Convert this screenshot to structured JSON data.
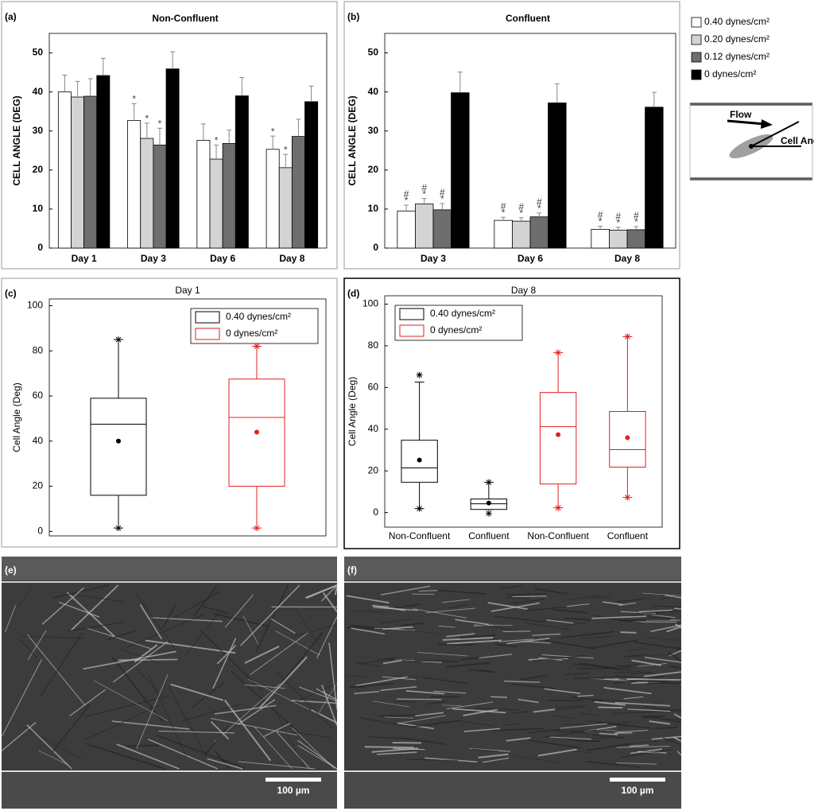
{
  "chart_data": [
    {
      "panel": "(a)",
      "type": "bar",
      "title": "Non-Confluent",
      "y_label": "CELL ANGLE (DEG)",
      "legend": true,
      "categories": [
        "Day 1",
        "Day 3",
        "Day 6",
        "Day 8"
      ],
      "ylim": [
        0,
        55
      ],
      "yticks": [
        0,
        10,
        20,
        30,
        40,
        50
      ],
      "series": [
        {
          "name": "0.40 dynes/cm²",
          "color": "#ffffff",
          "values": [
            40,
            32.7,
            27.6,
            25.3
          ],
          "errors": [
            4.3,
            4.3,
            4.2,
            3.4
          ],
          "annotations": [
            null,
            [
              "*"
            ],
            null,
            [
              "*"
            ]
          ]
        },
        {
          "name": "0.20 dynes/cm²",
          "color": "#d3d3d3",
          "values": [
            38.7,
            28.1,
            22.8,
            20.6
          ],
          "errors": [
            4,
            3.9,
            3.6,
            3.4
          ],
          "annotations": [
            null,
            [
              "*"
            ],
            [
              "*"
            ],
            [
              "*"
            ]
          ]
        },
        {
          "name": "0.12 dynes/cm²",
          "color": "#6e6e6e",
          "values": [
            38.9,
            26.4,
            26.8,
            28.6
          ],
          "errors": [
            4.5,
            4.3,
            3.4,
            4.4
          ],
          "annotations": [
            null,
            [
              "*"
            ],
            null,
            null
          ]
        },
        {
          "name": "0 dynes/cm²",
          "color": "#000000",
          "values": [
            44.2,
            45.9,
            39,
            37.5
          ],
          "errors": [
            4.4,
            4.4,
            4.7,
            4
          ]
        }
      ]
    },
    {
      "panel": "(b)",
      "type": "bar",
      "title": "Confluent",
      "y_label": "CELL ANGLE (DEG)",
      "categories": [
        "Day 3",
        "Day 6",
        "Day 8"
      ],
      "ylim": [
        0,
        55
      ],
      "yticks": [
        0,
        10,
        20,
        30,
        40,
        50
      ],
      "series": [
        {
          "color": "#ffffff",
          "values": [
            9.5,
            7.1,
            4.8
          ],
          "errors": [
            1.5,
            0.8,
            0.8
          ],
          "annotations": [
            [
              "*",
              "#"
            ],
            [
              "*",
              "#"
            ],
            [
              "*",
              "#"
            ]
          ]
        },
        {
          "color": "#d3d3d3",
          "values": [
            11.3,
            6.9,
            4.6
          ],
          "errors": [
            1.4,
            0.9,
            0.7
          ],
          "annotations": [
            [
              "*",
              "#"
            ],
            [
              "*",
              "#"
            ],
            [
              "*",
              "#"
            ]
          ]
        },
        {
          "color": "#6e6e6e",
          "values": [
            9.8,
            8,
            4.7
          ],
          "errors": [
            1.6,
            1,
            0.8
          ],
          "annotations": [
            [
              "*",
              "#"
            ],
            [
              "*",
              "#"
            ],
            [
              "*",
              "#"
            ]
          ]
        },
        {
          "color": "#000000",
          "values": [
            39.8,
            37.2,
            36.1
          ],
          "errors": [
            5.3,
            4.9,
            3.8
          ]
        }
      ]
    },
    {
      "panel": "(c)",
      "type": "box",
      "title": "Day 1",
      "y_label": "Cell Angle (Deg)",
      "legend": "upper right",
      "categories": [
        null,
        null
      ],
      "ylim": [
        -2,
        103
      ],
      "yticks": [
        0,
        20,
        40,
        60,
        80,
        100
      ],
      "series": [
        {
          "name": "0.40 dynes/cm²",
          "color": "#000000",
          "boxes": [
            {
              "low": 1.5,
              "q1": 16,
              "median": 47.5,
              "q3": 59,
              "high": 85,
              "mean": 40,
              "extremes": [
                1.5,
                85
              ]
            },
            null
          ]
        },
        {
          "name": "0 dynes/cm²",
          "color": "#e02020",
          "boxes": [
            null,
            {
              "low": 1.5,
              "q1": 20,
              "median": 50.5,
              "q3": 67.5,
              "high": 82,
              "mean": 44,
              "extremes": [
                1.5,
                82
              ]
            }
          ]
        }
      ]
    },
    {
      "panel": "(d)",
      "type": "box",
      "title": "Day 8",
      "y_label": "Cell Angle (Deg)",
      "legend": "upper left",
      "categories": [
        "Non-Confluent",
        "Confluent",
        "Non-Confluent",
        "Confluent"
      ],
      "ylim": [
        -7,
        104
      ],
      "yticks": [
        0,
        20,
        40,
        60,
        80,
        100
      ],
      "series": [
        {
          "name": "0.40 dynes/cm²",
          "color": "#000000",
          "boxes": [
            {
              "low": 1.9,
              "q1": 14.5,
              "median": 21.4,
              "q3": 34.7,
              "high": 62.6,
              "mean": 25.2,
              "extremes": [
                1.9,
                66
              ]
            },
            {
              "low": 1.5,
              "q1": 1.5,
              "median": 4.2,
              "q3": 6.5,
              "high": 14.5,
              "mean": 4.6,
              "extremes": [
                -0.4,
                14.5
              ]
            },
            null,
            null
          ]
        },
        {
          "name": "0 dynes/cm²",
          "color": "#e02020",
          "boxes": [
            null,
            null,
            {
              "low": 2.3,
              "q1": 13.7,
              "median": 41.2,
              "q3": 57.6,
              "high": 76.7,
              "mean": 37.4,
              "extremes": [
                2.3,
                76.7
              ]
            },
            {
              "low": 7.3,
              "q1": 21.8,
              "median": 30.2,
              "q3": 48.5,
              "high": 84.4,
              "mean": 35.9,
              "extremes": [
                7.3,
                84.4
              ]
            }
          ]
        }
      ]
    }
  ],
  "flow_diagram": {
    "flow": "Flow",
    "angle": "Cell Angle"
  },
  "images": [
    {
      "panel": "(e)",
      "scale_bar": "100 µm"
    },
    {
      "panel": "(f)",
      "scale_bar": "100 µm"
    }
  ]
}
